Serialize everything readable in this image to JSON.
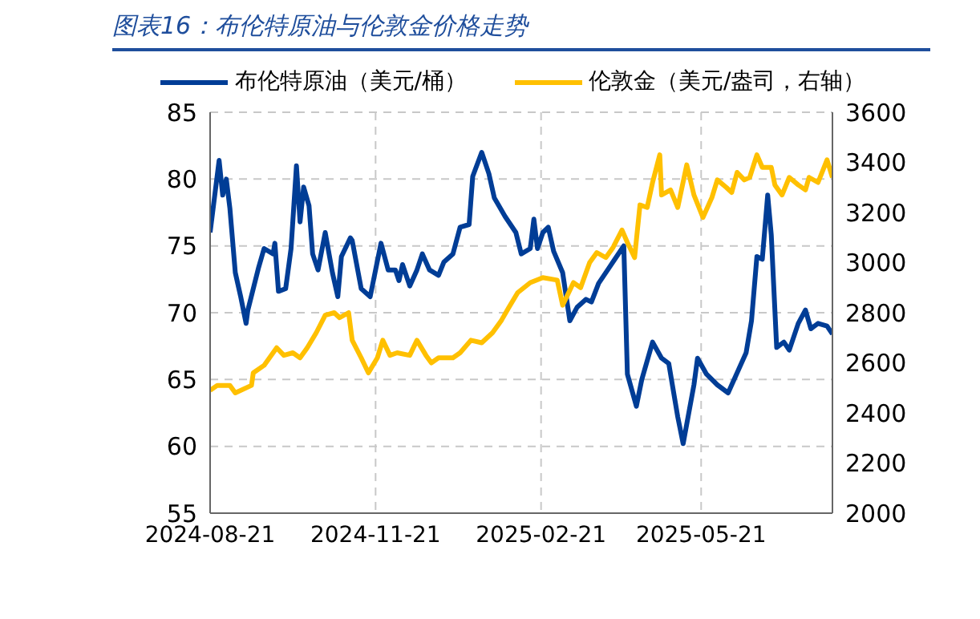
{
  "chart_data": {
    "type": "line",
    "title": "图表16：布伦特原油与伦敦金价格走势",
    "legend": "top",
    "grid": true,
    "marker": "none",
    "line_style": "solid",
    "xlim": [
      "2024-08-21",
      "2025-08-02"
    ],
    "xticks": [
      "2024-08-21",
      "2024-11-21",
      "2025-02-21",
      "2025-05-21"
    ],
    "ylim": [
      55,
      85
    ],
    "yticks": [
      55,
      60,
      65,
      70,
      75,
      80,
      85
    ],
    "y2lim": [
      2000,
      3600
    ],
    "y2ticks": [
      2000,
      2200,
      2400,
      2600,
      2800,
      3000,
      3200,
      3400,
      3600
    ],
    "series": [
      {
        "name": "布伦特原油（美元/桶）",
        "color": "#003d96",
        "x": [
          "2024-08-21",
          "2024-08-26",
          "2024-08-28",
          "2024-08-30",
          "2024-09-01",
          "2024-09-04",
          "2024-09-07",
          "2024-09-10",
          "2024-09-11",
          "2024-09-14",
          "2024-09-17",
          "2024-09-20",
          "2024-09-25",
          "2024-09-26",
          "2024-09-28",
          "2024-10-02",
          "2024-10-05",
          "2024-10-08",
          "2024-10-10",
          "2024-10-12",
          "2024-10-15",
          "2024-10-17",
          "2024-10-20",
          "2024-10-24",
          "2024-10-28",
          "2024-10-31",
          "2024-11-02",
          "2024-11-07",
          "2024-11-08",
          "2024-11-13",
          "2024-11-18",
          "2024-11-21",
          "2024-11-24",
          "2024-11-28",
          "2024-12-02",
          "2024-12-04",
          "2024-12-06",
          "2024-12-10",
          "2024-12-14",
          "2024-12-17",
          "2024-12-21",
          "2024-12-26",
          "2024-12-29",
          "2025-01-03",
          "2025-01-07",
          "2025-01-12",
          "2025-01-14",
          "2025-01-19",
          "2025-01-23",
          "2025-01-26",
          "2025-02-01",
          "2025-02-07",
          "2025-02-10",
          "2025-02-15",
          "2025-02-17",
          "2025-02-19",
          "2025-02-22",
          "2025-02-25",
          "2025-02-28",
          "2025-03-05",
          "2025-03-09",
          "2025-03-13",
          "2025-03-18",
          "2025-03-21",
          "2025-03-25",
          "2025-03-31",
          "2025-04-07",
          "2025-04-08",
          "2025-04-10",
          "2025-04-15",
          "2025-04-18",
          "2025-04-24",
          "2025-04-29",
          "2025-05-03",
          "2025-05-08",
          "2025-05-11",
          "2025-05-17",
          "2025-05-19",
          "2025-05-24",
          "2025-05-30",
          "2025-06-05",
          "2025-06-11",
          "2025-06-15",
          "2025-06-18",
          "2025-06-21",
          "2025-06-24",
          "2025-06-27",
          "2025-06-29",
          "2025-07-02",
          "2025-07-06",
          "2025-07-09",
          "2025-07-14",
          "2025-07-18",
          "2025-07-21",
          "2025-07-25",
          "2025-07-30",
          "2025-08-02"
        ],
        "values": [
          76.0,
          81.4,
          78.8,
          80.0,
          77.8,
          73.0,
          71.2,
          69.2,
          70.2,
          71.8,
          73.4,
          74.8,
          74.4,
          75.2,
          71.6,
          71.8,
          74.8,
          81.0,
          76.8,
          79.4,
          78.0,
          74.4,
          73.2,
          76.0,
          73.0,
          71.2,
          74.2,
          75.6,
          75.4,
          71.8,
          71.2,
          73.2,
          75.2,
          73.2,
          73.2,
          72.4,
          73.6,
          72.0,
          73.2,
          74.4,
          73.2,
          72.8,
          73.8,
          74.4,
          76.4,
          76.6,
          80.2,
          82.0,
          80.4,
          78.6,
          77.2,
          76.0,
          74.4,
          74.8,
          77.0,
          74.8,
          76.0,
          76.4,
          74.6,
          73.0,
          69.4,
          70.4,
          71.0,
          70.8,
          72.2,
          73.4,
          74.8,
          75.0,
          65.4,
          63.0,
          65.0,
          67.8,
          66.6,
          66.2,
          62.2,
          60.2,
          64.6,
          66.6,
          65.4,
          64.6,
          64.0,
          65.8,
          67.0,
          69.4,
          74.2,
          74.0,
          78.8,
          75.8,
          67.4,
          67.8,
          67.2,
          69.2,
          70.2,
          68.8,
          69.2,
          69.0,
          68.4
        ]
      },
      {
        "name": "伦敦金（美元/盎司，右轴）",
        "color": "#ffc000",
        "axis": "y2",
        "x": [
          "2024-08-21",
          "2024-08-25",
          "2024-09-01",
          "2024-09-04",
          "2024-09-13",
          "2024-09-14",
          "2024-09-20",
          "2024-09-27",
          "2024-10-01",
          "2024-10-06",
          "2024-10-10",
          "2024-10-14",
          "2024-10-19",
          "2024-10-24",
          "2024-10-29",
          "2024-11-01",
          "2024-11-06",
          "2024-11-08",
          "2024-11-13",
          "2024-11-17",
          "2024-11-22",
          "2024-11-25",
          "2024-11-29",
          "2024-12-03",
          "2024-12-10",
          "2024-12-14",
          "2024-12-19",
          "2024-12-22",
          "2024-12-26",
          "2025-01-03",
          "2025-01-07",
          "2025-01-13",
          "2025-01-19",
          "2025-01-25",
          "2025-01-30",
          "2025-02-03",
          "2025-02-08",
          "2025-02-15",
          "2025-02-22",
          "2025-03-02",
          "2025-03-05",
          "2025-03-11",
          "2025-03-15",
          "2025-03-20",
          "2025-03-24",
          "2025-03-29",
          "2025-04-02",
          "2025-04-07",
          "2025-04-10",
          "2025-04-14",
          "2025-04-17",
          "2025-04-21",
          "2025-04-24",
          "2025-04-28",
          "2025-04-29",
          "2025-05-04",
          "2025-05-08",
          "2025-05-13",
          "2025-05-17",
          "2025-05-22",
          "2025-05-27",
          "2025-05-30",
          "2025-06-04",
          "2025-06-07",
          "2025-06-10",
          "2025-06-14",
          "2025-06-17",
          "2025-06-21",
          "2025-06-24",
          "2025-06-29",
          "2025-07-01",
          "2025-07-05",
          "2025-07-09",
          "2025-07-14",
          "2025-07-18",
          "2025-07-20",
          "2025-07-25",
          "2025-07-30",
          "2025-08-02"
        ],
        "values": [
          2490,
          2510,
          2510,
          2480,
          2510,
          2560,
          2590,
          2660,
          2630,
          2640,
          2620,
          2660,
          2720,
          2790,
          2800,
          2780,
          2800,
          2690,
          2620,
          2560,
          2620,
          2690,
          2630,
          2640,
          2630,
          2690,
          2630,
          2600,
          2620,
          2620,
          2640,
          2690,
          2680,
          2720,
          2770,
          2820,
          2880,
          2920,
          2940,
          2930,
          2830,
          2920,
          2900,
          3000,
          3040,
          3020,
          3060,
          3130,
          3080,
          3020,
          3230,
          3220,
          3320,
          3430,
          3270,
          3290,
          3220,
          3390,
          3270,
          3180,
          3260,
          3330,
          3300,
          3280,
          3360,
          3330,
          3340,
          3430,
          3380,
          3380,
          3310,
          3270,
          3340,
          3310,
          3290,
          3340,
          3320,
          3410,
          3340
        ]
      }
    ]
  }
}
